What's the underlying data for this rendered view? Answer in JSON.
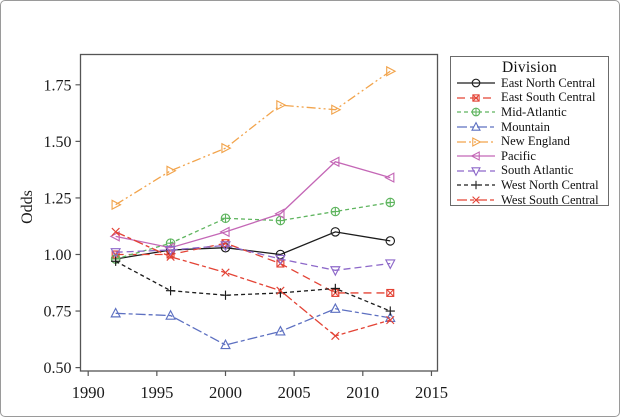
{
  "figure": {
    "border_color": "#9a9a9a",
    "frame_color": "#555555",
    "text_color": "#1a1a1a"
  },
  "chart_data": {
    "type": "line",
    "title": "",
    "xlabel": "",
    "ylabel": "Odds",
    "legend_title": "Division",
    "legend_position": "outside-right",
    "grid": false,
    "x": [
      1992,
      1996,
      2000,
      2004,
      2008,
      2012
    ],
    "xlim": [
      1989.44,
      2015.44
    ],
    "ylim": [
      0.485,
      1.884
    ],
    "x_ticks": [
      1990,
      1995,
      2000,
      2005,
      2010,
      2015
    ],
    "x_tick_labels": [
      "1990",
      "1995",
      "2000",
      "2005",
      "2010",
      "2015"
    ],
    "y_ticks": [
      0.5,
      0.75,
      1.0,
      1.25,
      1.5,
      1.75
    ],
    "y_tick_labels": [
      "0.50",
      "0.75",
      "1.00",
      "1.25",
      "1.50",
      "1.75"
    ],
    "series": [
      {
        "name": "East North Central",
        "color": "#1c1c1c",
        "dash": "solid",
        "marker": "circle",
        "values": [
          0.98,
          1.02,
          1.03,
          1.0,
          1.1,
          1.06
        ]
      },
      {
        "name": "East South Central",
        "color": "#e34335",
        "dash": "8,5",
        "marker": "square-x",
        "values": [
          1.0,
          1.0,
          1.05,
          0.96,
          0.83,
          0.83
        ]
      },
      {
        "name": "Mid-Atlantic",
        "color": "#5fb55f",
        "dash": "4,3",
        "marker": "circle-plus",
        "values": [
          0.98,
          1.05,
          1.16,
          1.15,
          1.19,
          1.23
        ]
      },
      {
        "name": "Mountain",
        "color": "#5d70c1",
        "dash": "10,3,4,3",
        "marker": "triangle-up",
        "values": [
          0.74,
          0.73,
          0.6,
          0.66,
          0.76,
          0.72
        ]
      },
      {
        "name": "New England",
        "color": "#f2a44c",
        "dash": "9,3,2,3,2,3",
        "marker": "triangle-right",
        "values": [
          1.22,
          1.37,
          1.47,
          1.66,
          1.64,
          1.81
        ]
      },
      {
        "name": "Pacific",
        "color": "#c467b6",
        "dash": "solid",
        "marker": "triangle-left",
        "values": [
          1.08,
          1.03,
          1.1,
          1.18,
          1.41,
          1.34
        ]
      },
      {
        "name": "South Atlantic",
        "color": "#8d68c9",
        "dash": "7,4",
        "marker": "triangle-down",
        "values": [
          1.01,
          1.02,
          1.04,
          0.98,
          0.93,
          0.96
        ]
      },
      {
        "name": "West North Central",
        "color": "#1c1c1c",
        "dash": "4,3",
        "marker": "plus",
        "values": [
          0.97,
          0.84,
          0.82,
          0.83,
          0.85,
          0.75
        ]
      },
      {
        "name": "West South Central",
        "color": "#e34335",
        "dash": "10,3,4,3",
        "marker": "x",
        "values": [
          1.1,
          0.99,
          0.92,
          0.84,
          0.64,
          0.71
        ]
      }
    ]
  }
}
